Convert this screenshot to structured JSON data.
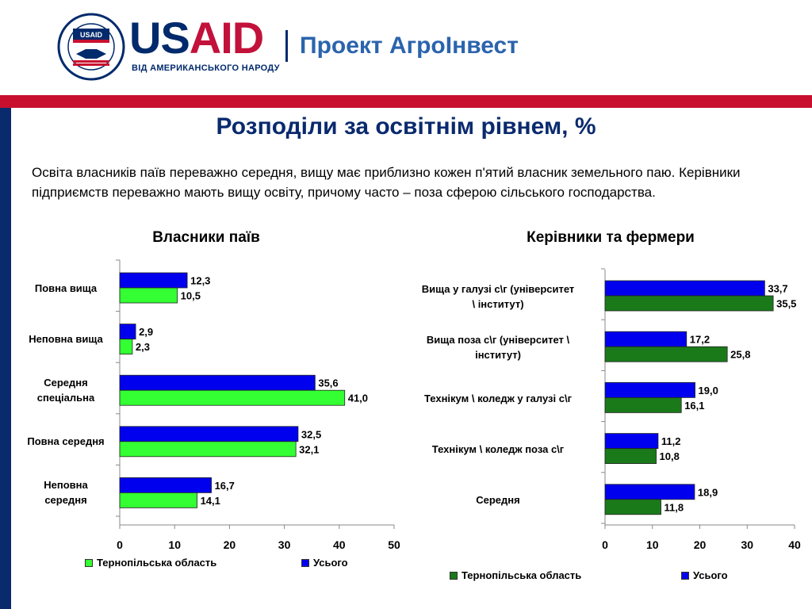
{
  "header": {
    "seal_text": "USAID",
    "usaid_word_us": "US",
    "usaid_word_aid": "AID",
    "tagline": "ВІД АМЕРИКАНСЬКОГО НАРОДУ",
    "project_name": "Проект АгроІнвест"
  },
  "title": "Розподіли за освітнім рівнем, %",
  "intro": "Освіта власників паїв переважно середня, вищу має приблизно кожен п'ятий власник земельного паю. Керівники підприємств переважно мають вищу освіту, причому часто – поза сферою сільського господарства.",
  "colors": {
    "series_blue": "#0000ee",
    "series_lightgreen": "#33ff33",
    "series_darkgreen": "#1a7a1a",
    "title_blue": "#0a2a6e",
    "red_band": "#c8102e"
  },
  "chart_data": [
    {
      "type": "bar",
      "orientation": "horizontal",
      "title": "Власники паїв",
      "categories": [
        "Повна вища",
        "Неповна вища",
        "Середня спеціальна",
        "Повна середня",
        "Неповна середня"
      ],
      "category_lines": [
        [
          "Повна вища"
        ],
        [
          "Неповна вища"
        ],
        [
          "Середня",
          "спеціальна"
        ],
        [
          "Повна середня"
        ],
        [
          "Неповна",
          "середня"
        ]
      ],
      "series": [
        {
          "name": "Усього",
          "values": [
            12.3,
            2.9,
            35.6,
            32.5,
            16.7
          ],
          "labels": [
            "12,3",
            "2,9",
            "35,6",
            "32,5",
            "16,7"
          ],
          "color": "#0000ee"
        },
        {
          "name": "Тернопільська область",
          "values": [
            10.5,
            2.3,
            41.0,
            32.1,
            14.1
          ],
          "labels": [
            "10,5",
            "2,3",
            "41,0",
            "32,1",
            "14,1"
          ],
          "color": "#33ff33"
        }
      ],
      "xlim": [
        0,
        50
      ],
      "xticks": [
        0,
        10,
        20,
        30,
        40,
        50
      ],
      "legend": [
        {
          "name": "Тернопільська область",
          "color": "#33ff33"
        },
        {
          "name": "Усього",
          "color": "#0000ee"
        }
      ],
      "legend_position": "bottom"
    },
    {
      "type": "bar",
      "orientation": "horizontal",
      "title": "Керівники та фермери",
      "categories": [
        "Вища у галузі с\\г (університет \\ інститут)",
        "Вища поза с\\г (університет \\ інститут)",
        "Технікум \\ коледж у галузі с\\г",
        "Технікум \\ коледж поза с\\г",
        "Середня"
      ],
      "category_lines": [
        [
          "Вища у галузі с\\г (університет",
          "\\ інститут)"
        ],
        [
          "Вища поза с\\г (університет \\",
          "інститут)"
        ],
        [
          "Технікум \\ коледж у галузі с\\г"
        ],
        [
          "Технікум \\ коледж поза с\\г"
        ],
        [
          "Середня"
        ]
      ],
      "series": [
        {
          "name": "Усього",
          "values": [
            33.7,
            17.2,
            19.0,
            11.2,
            18.9
          ],
          "labels": [
            "33,7",
            "17,2",
            "19,0",
            "11,2",
            "18,9"
          ],
          "color": "#0000ee"
        },
        {
          "name": "Тернопільська область",
          "values": [
            35.5,
            25.8,
            16.1,
            10.8,
            11.8
          ],
          "labels": [
            "35,5",
            "25,8",
            "16,1",
            "10,8",
            "11,8"
          ],
          "color": "#1a7a1a"
        }
      ],
      "xlim": [
        0,
        40
      ],
      "xticks": [
        0,
        10,
        20,
        30,
        40
      ],
      "legend": [
        {
          "name": "Тернопільська область",
          "color": "#1a7a1a"
        },
        {
          "name": "Усього",
          "color": "#0000ee"
        }
      ],
      "legend_position": "bottom"
    }
  ]
}
